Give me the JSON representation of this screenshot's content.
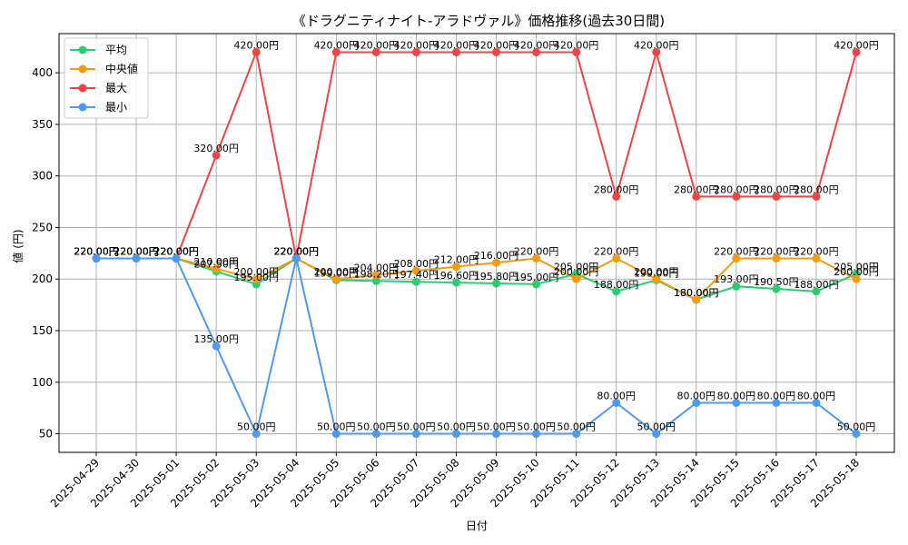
{
  "chart_data": {
    "type": "line",
    "title": "《ドラグニティナイト-アラドヴァル》価格推移(過去30日間)",
    "xlabel": "日付",
    "ylabel": "値 (円)",
    "value_suffix": "円",
    "categories": [
      "2025-04-29",
      "2025-04-30",
      "2025-05-01",
      "2025-05-02",
      "2025-05-03",
      "2025-05-04",
      "2025-05-05",
      "2025-05-06",
      "2025-05-07",
      "2025-05-08",
      "2025-05-09",
      "2025-05-10",
      "2025-05-11",
      "2025-05-12",
      "2025-05-13",
      "2025-05-14",
      "2025-05-15",
      "2025-05-16",
      "2025-05-17",
      "2025-05-18"
    ],
    "ylim": [
      32,
      438
    ],
    "yticks": [
      50,
      100,
      150,
      200,
      250,
      300,
      350,
      400
    ],
    "grid": true,
    "legend_position": "top-left",
    "series": [
      {
        "name": "平均",
        "color": "#2ecc71",
        "values": [
          220.0,
          220.0,
          220.0,
          207.5,
          195.0,
          220.0,
          199.0,
          198.2,
          197.4,
          196.6,
          195.8,
          195.0,
          205.0,
          188.0,
          199.0,
          180.0,
          193.0,
          190.5,
          188.0,
          205.0
        ]
      },
      {
        "name": "中央値",
        "color": "#f39c12",
        "values": [
          220.0,
          220.0,
          220.0,
          210.0,
          200.0,
          220.0,
          200.0,
          204.0,
          208.0,
          212.0,
          216.0,
          220.0,
          200.0,
          220.0,
          200.0,
          180.0,
          220.0,
          220.0,
          220.0,
          200.0
        ]
      },
      {
        "name": "最大",
        "color": "#ef4444",
        "values": [
          220.0,
          220.0,
          220.0,
          320.0,
          420.0,
          220.0,
          420.0,
          420.0,
          420.0,
          420.0,
          420.0,
          420.0,
          420.0,
          280.0,
          420.0,
          280.0,
          280.0,
          280.0,
          280.0,
          420.0
        ]
      },
      {
        "name": "最小",
        "color": "#4d9bf0",
        "values": [
          220.0,
          220.0,
          220.0,
          135.0,
          50.0,
          220.0,
          50.0,
          50.0,
          50.0,
          50.0,
          50.0,
          50.0,
          50.0,
          80.0,
          50.0,
          80.0,
          80.0,
          80.0,
          80.0,
          50.0
        ]
      }
    ]
  }
}
